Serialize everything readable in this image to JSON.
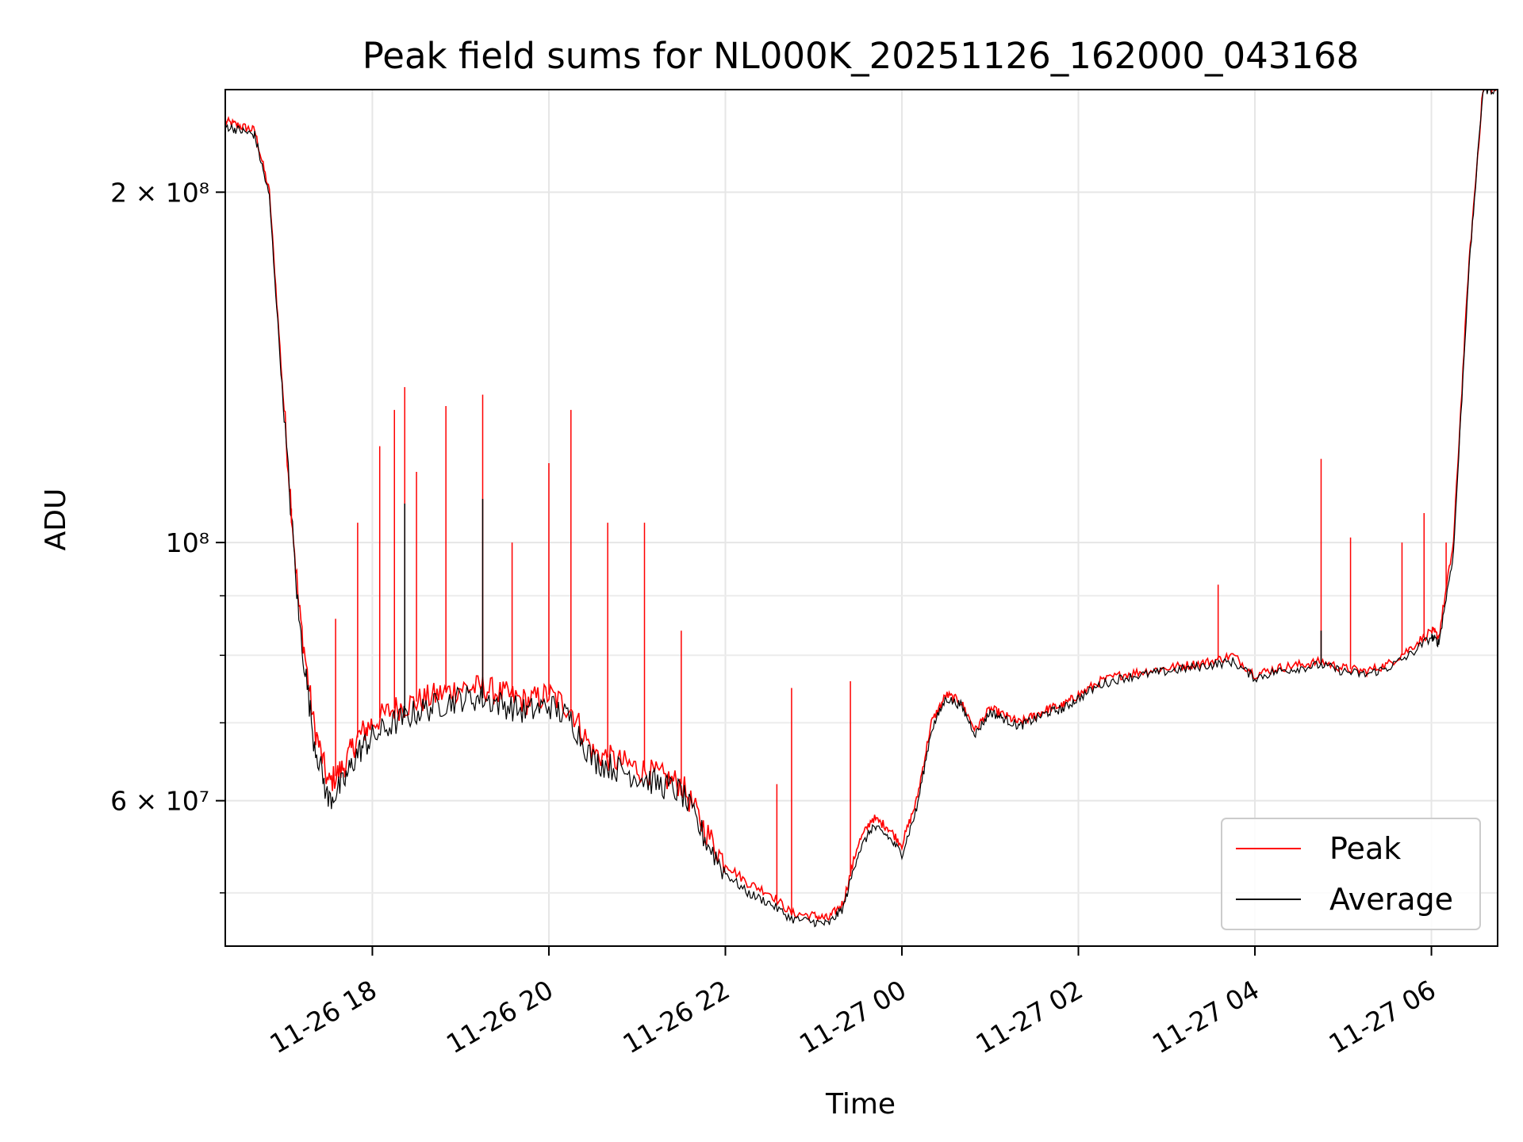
{
  "chart_data": {
    "type": "line",
    "title": "Peak field sums for NL000K_20251126_162000_043168",
    "xlabel": "Time",
    "ylabel": "ADU",
    "yscale": "log",
    "xlim": [
      "2025-11-26 16:20",
      "2025-11-27 06:45"
    ],
    "ylim": [
      45000000,
      245000000
    ],
    "grid": true,
    "legend_position": "lower-right",
    "x_ticks": [
      {
        "value": "2025-11-26 18:00",
        "label": "11-26 18"
      },
      {
        "value": "2025-11-26 20:00",
        "label": "11-26 20"
      },
      {
        "value": "2025-11-26 22:00",
        "label": "11-26 22"
      },
      {
        "value": "2025-11-27 00:00",
        "label": "11-27 00"
      },
      {
        "value": "2025-11-27 02:00",
        "label": "11-27 02"
      },
      {
        "value": "2025-11-27 04:00",
        "label": "11-27 04"
      },
      {
        "value": "2025-11-27 06:00",
        "label": "11-27 06"
      }
    ],
    "y_ticks_major": [
      {
        "value": 60000000,
        "label": "6 × 10⁷"
      },
      {
        "value": 100000000,
        "label": "10⁸"
      },
      {
        "value": 200000000,
        "label": "2 × 10⁸"
      }
    ],
    "y_ticks_minor": [
      50000000,
      70000000,
      80000000,
      90000000,
      300000000
    ],
    "series": [
      {
        "name": "Peak",
        "color": "#ff0000",
        "x": [
          "2025-11-26 16:20",
          "2025-11-26 16:30",
          "2025-11-26 16:40",
          "2025-11-26 16:50",
          "2025-11-26 17:00",
          "2025-11-26 17:10",
          "2025-11-26 17:20",
          "2025-11-26 17:30",
          "2025-11-26 17:40",
          "2025-11-26 17:50",
          "2025-11-26 18:00",
          "2025-11-26 18:15",
          "2025-11-26 18:30",
          "2025-11-26 18:45",
          "2025-11-26 19:00",
          "2025-11-26 19:15",
          "2025-11-26 19:30",
          "2025-11-26 19:45",
          "2025-11-26 20:00",
          "2025-11-26 20:15",
          "2025-11-26 20:30",
          "2025-11-26 20:45",
          "2025-11-26 21:00",
          "2025-11-26 21:15",
          "2025-11-26 21:30",
          "2025-11-26 21:45",
          "2025-11-26 22:00",
          "2025-11-26 22:15",
          "2025-11-26 22:30",
          "2025-11-26 22:45",
          "2025-11-26 23:00",
          "2025-11-26 23:10",
          "2025-11-26 23:20",
          "2025-11-26 23:30",
          "2025-11-26 23:40",
          "2025-11-26 23:50",
          "2025-11-27 00:00",
          "2025-11-27 00:10",
          "2025-11-27 00:20",
          "2025-11-27 00:30",
          "2025-11-27 00:40",
          "2025-11-27 00:50",
          "2025-11-27 01:00",
          "2025-11-27 01:10",
          "2025-11-27 01:20",
          "2025-11-27 01:30",
          "2025-11-27 01:40",
          "2025-11-27 01:50",
          "2025-11-27 02:00",
          "2025-11-27 02:15",
          "2025-11-27 02:30",
          "2025-11-27 02:45",
          "2025-11-27 03:00",
          "2025-11-27 03:15",
          "2025-11-27 03:30",
          "2025-11-27 03:45",
          "2025-11-27 04:00",
          "2025-11-27 04:15",
          "2025-11-27 04:30",
          "2025-11-27 04:45",
          "2025-11-27 05:00",
          "2025-11-27 05:15",
          "2025-11-27 05:30",
          "2025-11-27 05:45",
          "2025-11-27 06:00",
          "2025-11-27 06:05",
          "2025-11-27 06:15",
          "2025-11-27 06:25",
          "2025-11-27 06:35",
          "2025-11-27 06:45"
        ],
        "values": [
          230000000,
          228000000,
          226000000,
          200000000,
          130000000,
          88000000,
          70000000,
          62000000,
          64000000,
          68000000,
          70000000,
          72000000,
          73000000,
          74000000,
          75000000,
          75000000,
          74000000,
          73000000,
          74000000,
          72000000,
          66000000,
          65000000,
          64000000,
          63000000,
          62000000,
          57000000,
          53000000,
          51000000,
          50000000,
          48000000,
          47800000,
          47500000,
          49000000,
          55000000,
          58000000,
          57000000,
          55000000,
          60000000,
          70000000,
          74000000,
          73000000,
          69000000,
          72000000,
          71000000,
          70000000,
          71000000,
          72000000,
          72500000,
          74000000,
          76000000,
          77000000,
          77500000,
          78000000,
          78500000,
          79000000,
          80000000,
          77000000,
          78000000,
          78500000,
          79000000,
          78000000,
          77500000,
          78500000,
          81000000,
          84000000,
          83000000,
          100000000,
          170000000,
          245000000,
          245000000
        ]
      },
      {
        "name": "Average",
        "color": "#000000",
        "x": [
          "2025-11-26 16:20",
          "2025-11-26 16:30",
          "2025-11-26 16:40",
          "2025-11-26 16:50",
          "2025-11-26 17:00",
          "2025-11-26 17:10",
          "2025-11-26 17:20",
          "2025-11-26 17:30",
          "2025-11-26 17:40",
          "2025-11-26 17:50",
          "2025-11-26 18:00",
          "2025-11-26 18:15",
          "2025-11-26 18:30",
          "2025-11-26 18:45",
          "2025-11-26 19:00",
          "2025-11-26 19:15",
          "2025-11-26 19:30",
          "2025-11-26 19:45",
          "2025-11-26 20:00",
          "2025-11-26 20:15",
          "2025-11-26 20:30",
          "2025-11-26 20:45",
          "2025-11-26 21:00",
          "2025-11-26 21:15",
          "2025-11-26 21:30",
          "2025-11-26 21:45",
          "2025-11-26 22:00",
          "2025-11-26 22:15",
          "2025-11-26 22:30",
          "2025-11-26 22:45",
          "2025-11-26 23:00",
          "2025-11-26 23:10",
          "2025-11-26 23:20",
          "2025-11-26 23:30",
          "2025-11-26 23:40",
          "2025-11-26 23:50",
          "2025-11-27 00:00",
          "2025-11-27 00:10",
          "2025-11-27 00:20",
          "2025-11-27 00:30",
          "2025-11-27 00:40",
          "2025-11-27 00:50",
          "2025-11-27 01:00",
          "2025-11-27 01:10",
          "2025-11-27 01:20",
          "2025-11-27 01:30",
          "2025-11-27 01:40",
          "2025-11-27 01:50",
          "2025-11-27 02:00",
          "2025-11-27 02:15",
          "2025-11-27 02:30",
          "2025-11-27 02:45",
          "2025-11-27 03:00",
          "2025-11-27 03:15",
          "2025-11-27 03:30",
          "2025-11-27 03:45",
          "2025-11-27 04:00",
          "2025-11-27 04:15",
          "2025-11-27 04:30",
          "2025-11-27 04:45",
          "2025-11-27 05:00",
          "2025-11-27 05:15",
          "2025-11-27 05:30",
          "2025-11-27 05:45",
          "2025-11-27 06:00",
          "2025-11-27 06:05",
          "2025-11-27 06:15",
          "2025-11-27 06:25",
          "2025-11-27 06:35",
          "2025-11-27 06:45"
        ],
        "values": [
          228000000,
          226000000,
          224000000,
          198000000,
          128000000,
          86000000,
          68000000,
          60000000,
          62000000,
          66000000,
          68000000,
          70000000,
          71500000,
          72500000,
          73500000,
          73500000,
          72500000,
          71500000,
          72500000,
          70500000,
          65000000,
          64000000,
          63000000,
          62000000,
          61000000,
          56000000,
          52000000,
          50000000,
          49000000,
          47500000,
          47200000,
          47000000,
          48500000,
          54000000,
          57000000,
          56000000,
          54000000,
          59000000,
          69000000,
          73500000,
          72500000,
          68500000,
          71500000,
          70500000,
          69500000,
          70500000,
          71500000,
          72000000,
          73500000,
          75500000,
          76500000,
          77000000,
          77500000,
          78000000,
          78500000,
          79000000,
          76500000,
          77500000,
          78000000,
          78500000,
          77500000,
          77000000,
          78000000,
          80000000,
          83000000,
          82000000,
          98000000,
          168000000,
          245000000,
          245000000
        ]
      }
    ],
    "spikes": [
      {
        "series": "Peak",
        "x": "2025-11-26 17:05",
        "value": 104000000
      },
      {
        "series": "Peak",
        "x": "2025-11-26 17:35",
        "value": 86000000
      },
      {
        "series": "Peak",
        "x": "2025-11-26 17:50",
        "value": 104000000
      },
      {
        "series": "Peak",
        "x": "2025-11-26 18:05",
        "value": 121000000
      },
      {
        "series": "Peak",
        "x": "2025-11-26 18:15",
        "value": 130000000
      },
      {
        "series": "Peak",
        "x": "2025-11-26 18:22",
        "value": 136000000
      },
      {
        "series": "Peak",
        "x": "2025-11-26 18:30",
        "value": 115000000
      },
      {
        "series": "Peak",
        "x": "2025-11-26 18:50",
        "value": 131000000
      },
      {
        "series": "Peak",
        "x": "2025-11-26 19:15",
        "value": 134000000
      },
      {
        "series": "Peak",
        "x": "2025-11-26 19:35",
        "value": 100000000
      },
      {
        "series": "Peak",
        "x": "2025-11-26 20:00",
        "value": 117000000
      },
      {
        "series": "Peak",
        "x": "2025-11-26 20:15",
        "value": 130000000
      },
      {
        "series": "Peak",
        "x": "2025-11-26 20:40",
        "value": 104000000
      },
      {
        "series": "Peak",
        "x": "2025-11-26 21:05",
        "value": 104000000
      },
      {
        "series": "Peak",
        "x": "2025-11-26 21:30",
        "value": 84000000
      },
      {
        "series": "Peak",
        "x": "2025-11-26 22:35",
        "value": 62000000
      },
      {
        "series": "Peak",
        "x": "2025-11-26 22:45",
        "value": 75000000
      },
      {
        "series": "Peak",
        "x": "2025-11-26 23:25",
        "value": 76000000
      },
      {
        "series": "Peak",
        "x": "2025-11-27 03:35",
        "value": 92000000
      },
      {
        "series": "Peak",
        "x": "2025-11-27 04:45",
        "value": 118000000
      },
      {
        "series": "Peak",
        "x": "2025-11-27 05:05",
        "value": 101000000
      },
      {
        "series": "Peak",
        "x": "2025-11-27 05:40",
        "value": 100000000
      },
      {
        "series": "Peak",
        "x": "2025-11-27 05:55",
        "value": 106000000
      },
      {
        "series": "Peak",
        "x": "2025-11-27 06:10",
        "value": 100000000
      },
      {
        "series": "Average",
        "x": "2025-11-26 18:22",
        "value": 108000000
      },
      {
        "series": "Average",
        "x": "2025-11-26 19:15",
        "value": 109000000
      },
      {
        "series": "Average",
        "x": "2025-11-27 04:45",
        "value": 84000000
      }
    ]
  }
}
